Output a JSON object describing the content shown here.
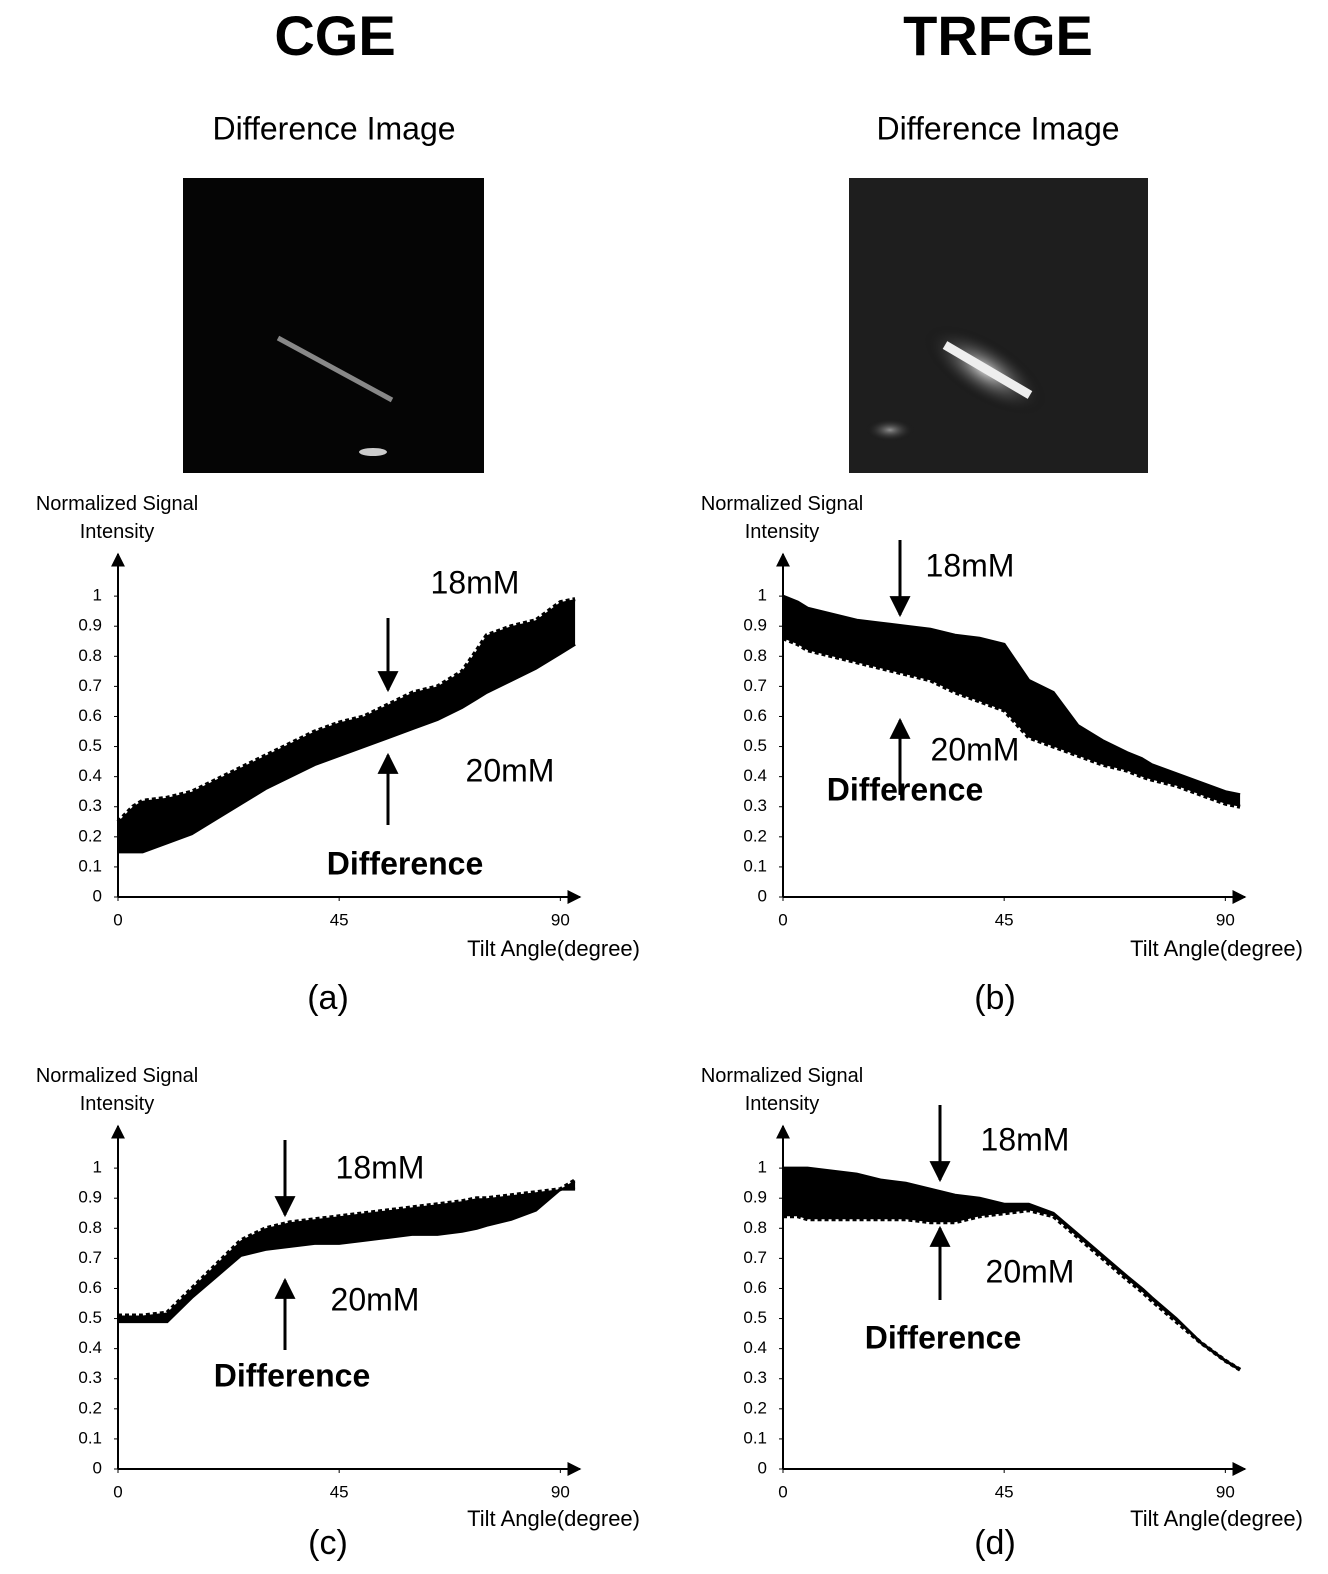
{
  "headers": [
    "CGE",
    "TRFGE"
  ],
  "image_titles": [
    "Difference Image",
    "Difference Image"
  ],
  "chart_data": [
    {
      "type": "area",
      "panel": "(a)",
      "ylabel": "Normalized Signal Intensity",
      "xlabel": "Tilt Angle(degree)",
      "annotation": "Difference",
      "x": [
        0,
        3,
        5,
        10,
        15,
        20,
        25,
        30,
        35,
        40,
        45,
        50,
        55,
        60,
        65,
        70,
        73,
        75,
        80,
        85,
        90,
        93
      ],
      "xlim": [
        0,
        94
      ],
      "xticks": [
        0,
        45,
        90
      ],
      "ylim": [
        0,
        1.14
      ],
      "yticks": [
        0,
        0.1,
        0.2,
        0.3,
        0.4,
        0.5,
        0.6,
        0.7,
        0.8,
        0.9,
        1
      ],
      "series": [
        {
          "name": "18mM",
          "color": "#000000",
          "linestyle": "dotted",
          "values": [
            0.25,
            0.3,
            0.32,
            0.33,
            0.35,
            0.39,
            0.43,
            0.47,
            0.51,
            0.55,
            0.58,
            0.6,
            0.64,
            0.68,
            0.7,
            0.75,
            0.82,
            0.87,
            0.9,
            0.92,
            0.98,
            0.99
          ]
        },
        {
          "name": "20mM",
          "color": "#000000",
          "linestyle": "solid",
          "values": [
            0.15,
            0.15,
            0.15,
            0.18,
            0.21,
            0.26,
            0.31,
            0.36,
            0.4,
            0.44,
            0.47,
            0.5,
            0.53,
            0.56,
            0.59,
            0.63,
            0.66,
            0.68,
            0.72,
            0.76,
            0.81,
            0.84
          ]
        }
      ]
    },
    {
      "type": "area",
      "panel": "(b)",
      "ylabel": "Normalized Signal Intensity",
      "xlabel": "Tilt Angle(degree)",
      "annotation": "Difference",
      "x": [
        0,
        3,
        5,
        10,
        15,
        20,
        25,
        30,
        35,
        40,
        45,
        50,
        55,
        60,
        65,
        70,
        73,
        75,
        80,
        85,
        90,
        93
      ],
      "xlim": [
        0,
        94
      ],
      "xticks": [
        0,
        45,
        90
      ],
      "ylim": [
        0,
        1.14
      ],
      "yticks": [
        0,
        0.1,
        0.2,
        0.3,
        0.4,
        0.5,
        0.6,
        0.7,
        0.8,
        0.9,
        1
      ],
      "series": [
        {
          "name": "18mM",
          "color": "#000000",
          "linestyle": "solid",
          "values": [
            1.0,
            0.98,
            0.96,
            0.94,
            0.92,
            0.91,
            0.9,
            0.89,
            0.87,
            0.86,
            0.84,
            0.72,
            0.68,
            0.57,
            0.52,
            0.48,
            0.46,
            0.44,
            0.41,
            0.38,
            0.35,
            0.34
          ]
        },
        {
          "name": "20mM",
          "color": "#000000",
          "linestyle": "dotted",
          "values": [
            0.86,
            0.84,
            0.82,
            0.8,
            0.78,
            0.76,
            0.74,
            0.72,
            0.68,
            0.65,
            0.62,
            0.53,
            0.5,
            0.47,
            0.44,
            0.42,
            0.4,
            0.39,
            0.37,
            0.34,
            0.31,
            0.3
          ]
        }
      ]
    },
    {
      "type": "area",
      "panel": "(c)",
      "ylabel": "Normalized Signal Intensity",
      "xlabel": "Tilt Angle(degree)",
      "annotation": "Difference",
      "x": [
        0,
        3,
        5,
        10,
        15,
        20,
        25,
        30,
        35,
        40,
        45,
        50,
        55,
        60,
        65,
        70,
        73,
        75,
        80,
        85,
        90,
        93
      ],
      "xlim": [
        0,
        94
      ],
      "xticks": [
        0,
        45,
        90
      ],
      "ylim": [
        0,
        1.14
      ],
      "yticks": [
        0,
        0.1,
        0.2,
        0.3,
        0.4,
        0.5,
        0.6,
        0.7,
        0.8,
        0.9,
        1
      ],
      "series": [
        {
          "name": "18mM",
          "color": "#000000",
          "linestyle": "dotted",
          "values": [
            0.51,
            0.51,
            0.51,
            0.52,
            0.6,
            0.68,
            0.76,
            0.8,
            0.82,
            0.83,
            0.84,
            0.85,
            0.86,
            0.87,
            0.88,
            0.89,
            0.9,
            0.9,
            0.91,
            0.92,
            0.93,
            0.96
          ]
        },
        {
          "name": "20mM",
          "color": "#000000",
          "linestyle": "solid",
          "values": [
            0.49,
            0.49,
            0.49,
            0.49,
            0.57,
            0.64,
            0.71,
            0.73,
            0.74,
            0.75,
            0.75,
            0.76,
            0.77,
            0.78,
            0.78,
            0.79,
            0.8,
            0.81,
            0.83,
            0.86,
            0.93,
            0.93
          ]
        }
      ]
    },
    {
      "type": "area",
      "panel": "(d)",
      "ylabel": "Normalized Signal Intensity",
      "xlabel": "Tilt Angle(degree)",
      "annotation": "Difference",
      "x": [
        0,
        3,
        5,
        10,
        15,
        20,
        25,
        30,
        35,
        40,
        45,
        50,
        55,
        60,
        65,
        70,
        73,
        75,
        80,
        85,
        90,
        93
      ],
      "xlim": [
        0,
        94
      ],
      "xticks": [
        0,
        45,
        90
      ],
      "ylim": [
        0,
        1.14
      ],
      "yticks": [
        0,
        0.1,
        0.2,
        0.3,
        0.4,
        0.5,
        0.6,
        0.7,
        0.8,
        0.9,
        1
      ],
      "series": [
        {
          "name": "18mM",
          "color": "#000000",
          "linestyle": "solid",
          "values": [
            1.0,
            1.0,
            1.0,
            0.99,
            0.98,
            0.96,
            0.95,
            0.93,
            0.91,
            0.9,
            0.88,
            0.88,
            0.85,
            0.78,
            0.71,
            0.64,
            0.6,
            0.57,
            0.5,
            0.42,
            0.36,
            0.33
          ]
        },
        {
          "name": "20mM",
          "color": "#000000",
          "linestyle": "dotted",
          "values": [
            0.84,
            0.84,
            0.83,
            0.83,
            0.83,
            0.83,
            0.83,
            0.82,
            0.82,
            0.84,
            0.85,
            0.86,
            0.84,
            0.77,
            0.7,
            0.63,
            0.59,
            0.56,
            0.49,
            0.42,
            0.36,
            0.33
          ]
        }
      ]
    }
  ]
}
